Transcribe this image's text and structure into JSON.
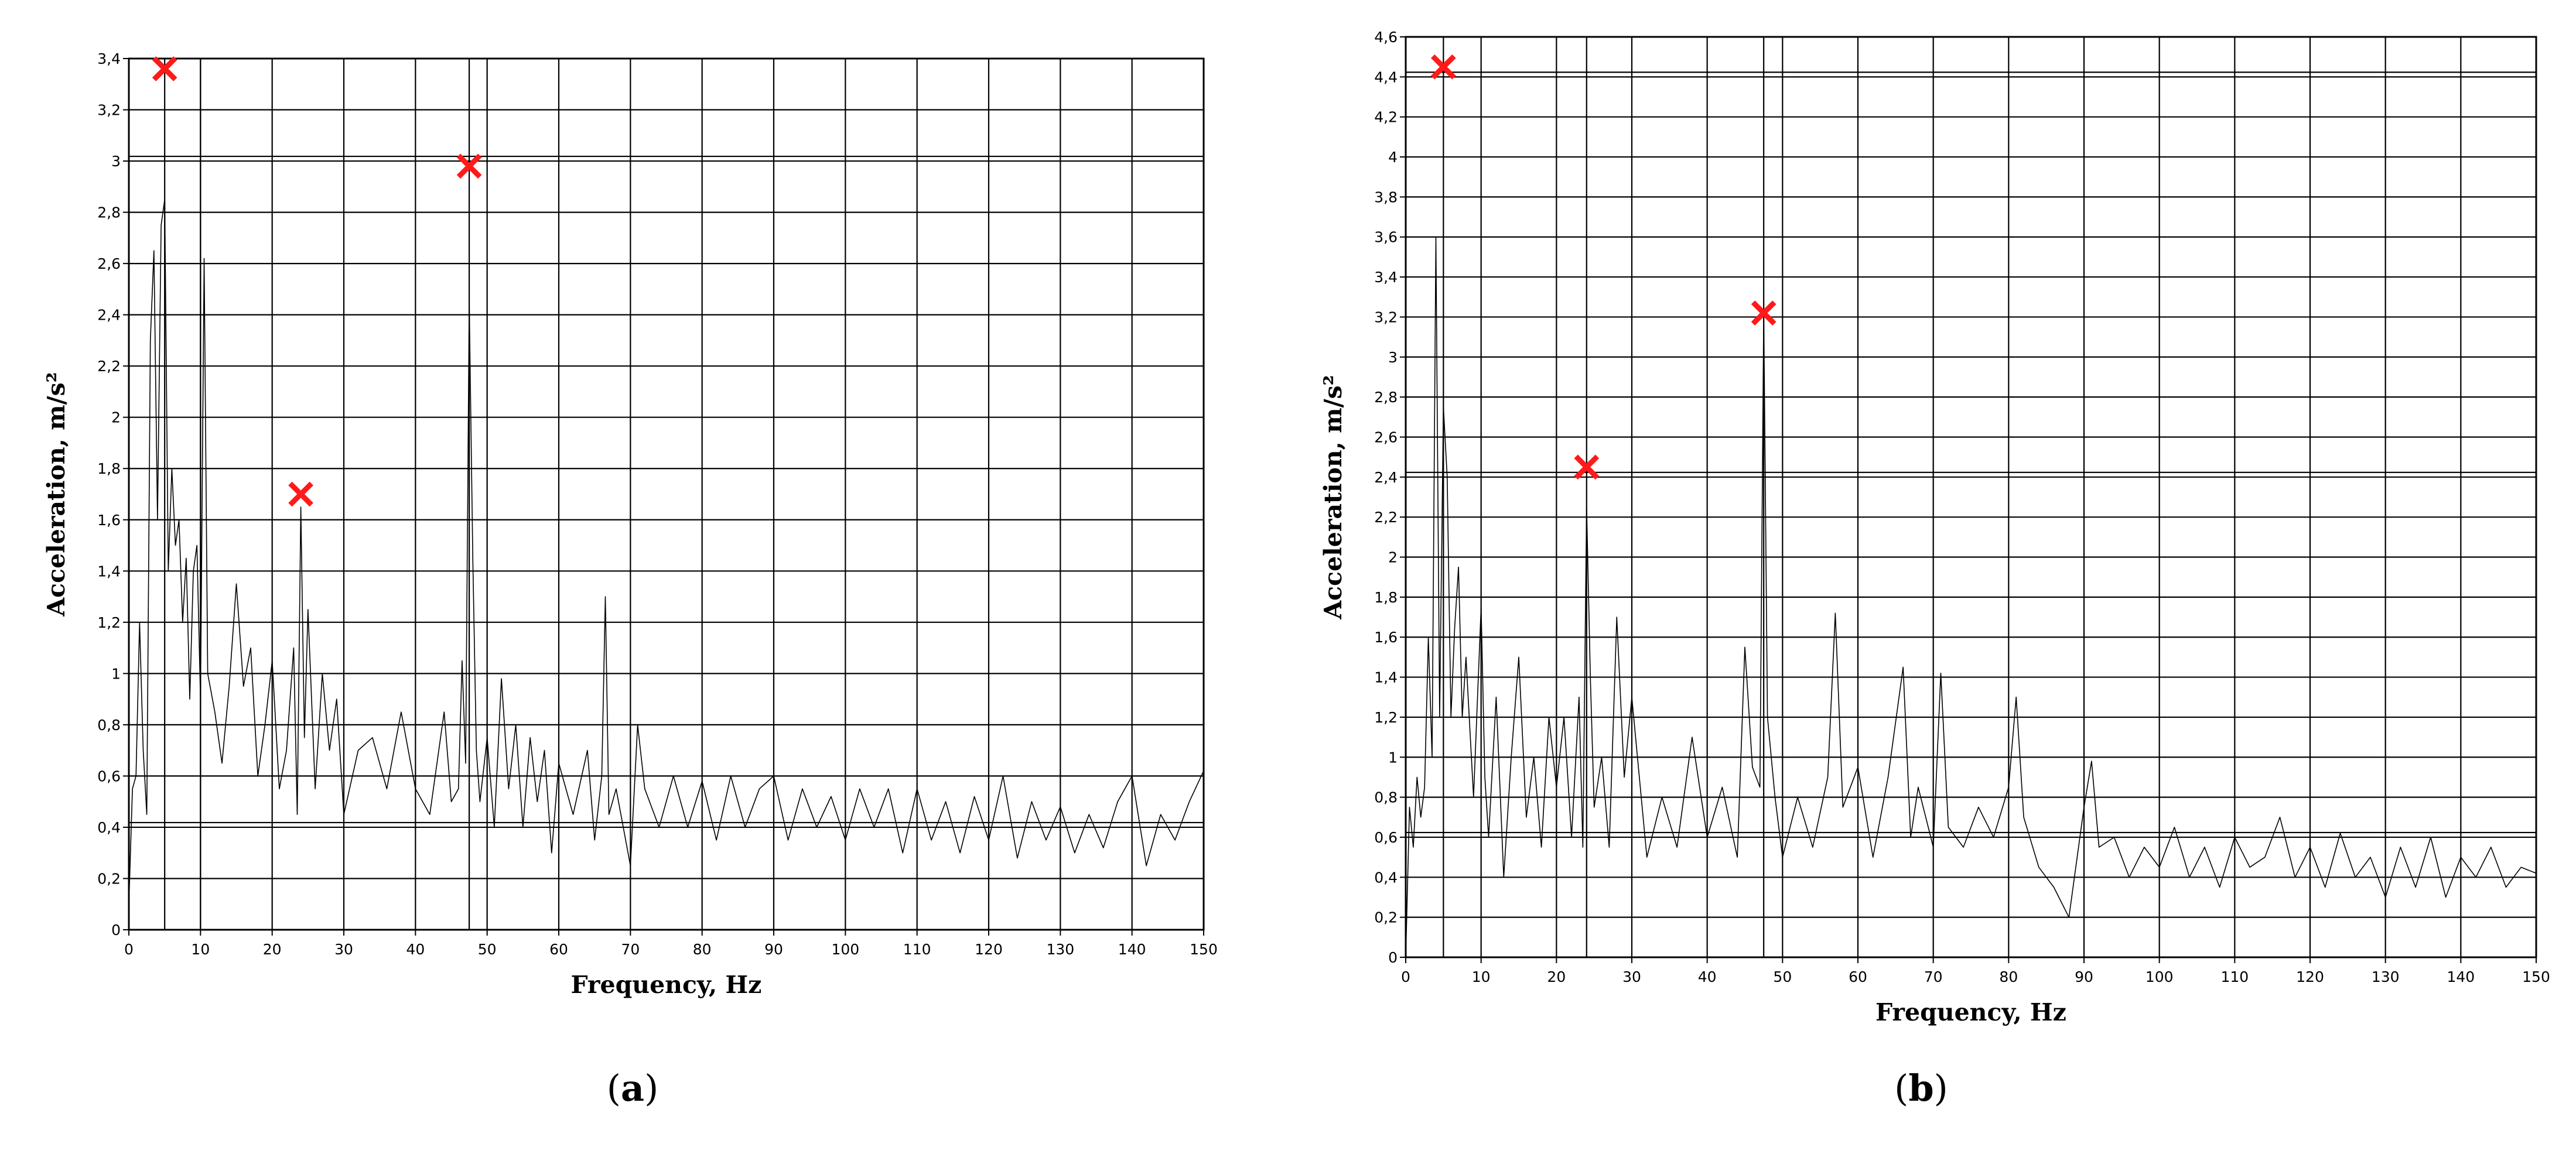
{
  "panels": [
    {
      "caption_letter": "a",
      "caption_left": "(",
      "caption_right": ")",
      "chart_data": {
        "type": "line",
        "xlabel": "Frequency, Hz",
        "ylabel": "Acceleration, m/s²",
        "xlim": [
          0,
          150
        ],
        "ylim": [
          0,
          3.4
        ],
        "grid": true,
        "x_ticks": [
          0,
          10,
          20,
          30,
          40,
          50,
          60,
          70,
          80,
          90,
          100,
          110,
          120,
          130,
          140,
          150
        ],
        "y_ticks": [
          0,
          0.2,
          0.4,
          0.6,
          0.8,
          1,
          1.2,
          1.4,
          1.6,
          1.8,
          2,
          2.2,
          2.4,
          2.6,
          2.8,
          3,
          3.2,
          3.4
        ],
        "y_tick_labels": [
          "0",
          "0,2",
          "0,4",
          "0,6",
          "0,8",
          "1",
          "1,2",
          "1,4",
          "1,6",
          "1,8",
          "2",
          "2,2",
          "2,4",
          "2,6",
          "2,8",
          "3",
          "3,2",
          "3,4"
        ],
        "extra_vlines": [
          5,
          10,
          47.5
        ],
        "extra_hlines": [
          3,
          0.4
        ],
        "markers": [
          {
            "x": 5,
            "y": 3.36
          },
          {
            "x": 24,
            "y": 1.7
          },
          {
            "x": 47.5,
            "y": 2.98
          }
        ],
        "x": [
          0,
          0.5,
          1,
          1.5,
          2,
          2.5,
          3,
          3.5,
          4,
          4.5,
          5,
          5.5,
          6,
          6.5,
          7,
          7.5,
          8,
          8.5,
          9,
          9.5,
          10,
          10.5,
          11,
          12,
          13,
          14,
          15,
          16,
          17,
          18,
          19,
          20,
          21,
          22,
          23,
          23.5,
          24,
          24.5,
          25,
          26,
          27,
          28,
          29,
          30,
          32,
          34,
          36,
          38,
          40,
          42,
          44,
          45,
          46,
          46.5,
          47,
          47.5,
          48,
          48.5,
          49,
          50,
          51,
          52,
          53,
          54,
          55,
          56,
          57,
          58,
          59,
          60,
          62,
          64,
          65,
          66,
          66.5,
          67,
          68,
          70,
          71,
          72,
          74,
          76,
          78,
          80,
          82,
          84,
          86,
          88,
          90,
          92,
          94,
          96,
          98,
          100,
          102,
          104,
          106,
          108,
          110,
          112,
          114,
          116,
          118,
          120,
          122,
          124,
          126,
          128,
          130,
          132,
          134,
          136,
          138,
          140,
          142,
          144,
          146,
          148,
          150
        ],
        "values": [
          0.1,
          0.55,
          0.6,
          1.2,
          0.7,
          0.45,
          2.3,
          2.65,
          1.6,
          2.75,
          2.85,
          1.4,
          1.8,
          1.5,
          1.6,
          1.2,
          1.45,
          0.9,
          1.4,
          1.5,
          0.9,
          2.62,
          1.0,
          0.85,
          0.65,
          0.95,
          1.35,
          0.95,
          1.1,
          0.6,
          0.8,
          1.05,
          0.55,
          0.7,
          1.1,
          0.45,
          1.65,
          0.75,
          1.25,
          0.55,
          1.0,
          0.7,
          0.9,
          0.45,
          0.7,
          0.75,
          0.55,
          0.85,
          0.55,
          0.45,
          0.85,
          0.5,
          0.55,
          1.05,
          0.65,
          2.45,
          1.45,
          0.7,
          0.5,
          0.75,
          0.4,
          0.98,
          0.55,
          0.8,
          0.4,
          0.75,
          0.5,
          0.7,
          0.3,
          0.65,
          0.45,
          0.7,
          0.35,
          0.6,
          1.3,
          0.45,
          0.55,
          0.25,
          0.8,
          0.55,
          0.4,
          0.6,
          0.4,
          0.58,
          0.35,
          0.6,
          0.4,
          0.55,
          0.6,
          0.35,
          0.55,
          0.4,
          0.52,
          0.35,
          0.55,
          0.4,
          0.55,
          0.3,
          0.55,
          0.35,
          0.5,
          0.3,
          0.52,
          0.35,
          0.6,
          0.28,
          0.5,
          0.35,
          0.48,
          0.3,
          0.45,
          0.32,
          0.5,
          0.6,
          0.25,
          0.45,
          0.35,
          0.5,
          0.62
        ]
      }
    },
    {
      "caption_letter": "b",
      "caption_left": "(",
      "caption_right": ")",
      "chart_data": {
        "type": "line",
        "xlabel": "Frequency, Hz",
        "ylabel": "Acceleration, m/s²",
        "xlim": [
          0,
          150
        ],
        "ylim": [
          0,
          4.6
        ],
        "grid": true,
        "x_ticks": [
          0,
          10,
          20,
          30,
          40,
          50,
          60,
          70,
          80,
          90,
          100,
          110,
          120,
          130,
          140,
          150
        ],
        "y_ticks": [
          0,
          0.2,
          0.4,
          0.6,
          0.8,
          1,
          1.2,
          1.4,
          1.6,
          1.8,
          2,
          2.2,
          2.4,
          2.6,
          2.8,
          3,
          3.2,
          3.4,
          3.6,
          3.8,
          4,
          4.2,
          4.4,
          4.6
        ],
        "y_tick_labels": [
          "0",
          "0,2",
          "0,4",
          "0,6",
          "0,8",
          "1",
          "1,2",
          "1,4",
          "1,6",
          "1,8",
          "2",
          "2,2",
          "2,4",
          "2,6",
          "2,8",
          "3",
          "3,2",
          "3,4",
          "3,6",
          "3,8",
          "4",
          "4,2",
          "4,4",
          "4,6"
        ],
        "extra_vlines": [
          5,
          24,
          47.5
        ],
        "extra_hlines": [
          4.4,
          2.4,
          0.6
        ],
        "markers": [
          {
            "x": 5,
            "y": 4.45
          },
          {
            "x": 24,
            "y": 2.45
          },
          {
            "x": 47.5,
            "y": 3.22
          }
        ],
        "x": [
          0,
          0.5,
          1,
          1.5,
          2,
          2.5,
          3,
          3.5,
          4,
          4.5,
          5,
          5.5,
          6,
          6.5,
          7,
          7.5,
          8,
          9,
          10,
          10.5,
          11,
          12,
          13,
          14,
          15,
          16,
          17,
          18,
          19,
          20,
          21,
          22,
          23,
          23.5,
          24,
          24.5,
          25,
          26,
          27,
          28,
          29,
          30,
          32,
          34,
          36,
          38,
          40,
          42,
          44,
          45,
          46,
          47,
          47.5,
          48,
          49,
          50,
          52,
          54,
          56,
          57,
          58,
          60,
          62,
          64,
          66,
          67,
          68,
          70,
          71,
          72,
          74,
          76,
          78,
          80,
          81,
          82,
          84,
          86,
          88,
          90,
          91,
          92,
          94,
          96,
          98,
          100,
          102,
          104,
          106,
          108,
          110,
          112,
          114,
          116,
          118,
          120,
          122,
          124,
          126,
          128,
          130,
          132,
          134,
          136,
          138,
          140,
          142,
          144,
          146,
          148,
          150
        ],
        "values": [
          0,
          0.75,
          0.55,
          0.9,
          0.7,
          0.85,
          1.6,
          1.0,
          3.6,
          1.2,
          2.75,
          2.4,
          1.2,
          1.65,
          1.95,
          1.2,
          1.5,
          0.8,
          1.75,
          0.9,
          0.6,
          1.3,
          0.4,
          1.0,
          1.5,
          0.7,
          1.0,
          0.55,
          1.2,
          0.85,
          1.2,
          0.6,
          1.3,
          0.55,
          2.25,
          1.4,
          0.75,
          1.0,
          0.55,
          1.7,
          0.9,
          1.3,
          0.5,
          0.8,
          0.55,
          1.1,
          0.6,
          0.85,
          0.5,
          1.55,
          0.95,
          0.85,
          3.22,
          1.2,
          0.8,
          0.5,
          0.8,
          0.55,
          0.9,
          1.72,
          0.75,
          0.95,
          0.5,
          0.9,
          1.45,
          0.6,
          0.85,
          0.55,
          1.42,
          0.65,
          0.55,
          0.75,
          0.6,
          0.85,
          1.3,
          0.7,
          0.45,
          0.35,
          0.2,
          0.75,
          0.98,
          0.55,
          0.6,
          0.4,
          0.55,
          0.45,
          0.65,
          0.4,
          0.55,
          0.35,
          0.6,
          0.45,
          0.5,
          0.7,
          0.4,
          0.55,
          0.35,
          0.62,
          0.4,
          0.5,
          0.3,
          0.55,
          0.35,
          0.6,
          0.3,
          0.5,
          0.4,
          0.55,
          0.35,
          0.45,
          0.42
        ]
      }
    }
  ]
}
